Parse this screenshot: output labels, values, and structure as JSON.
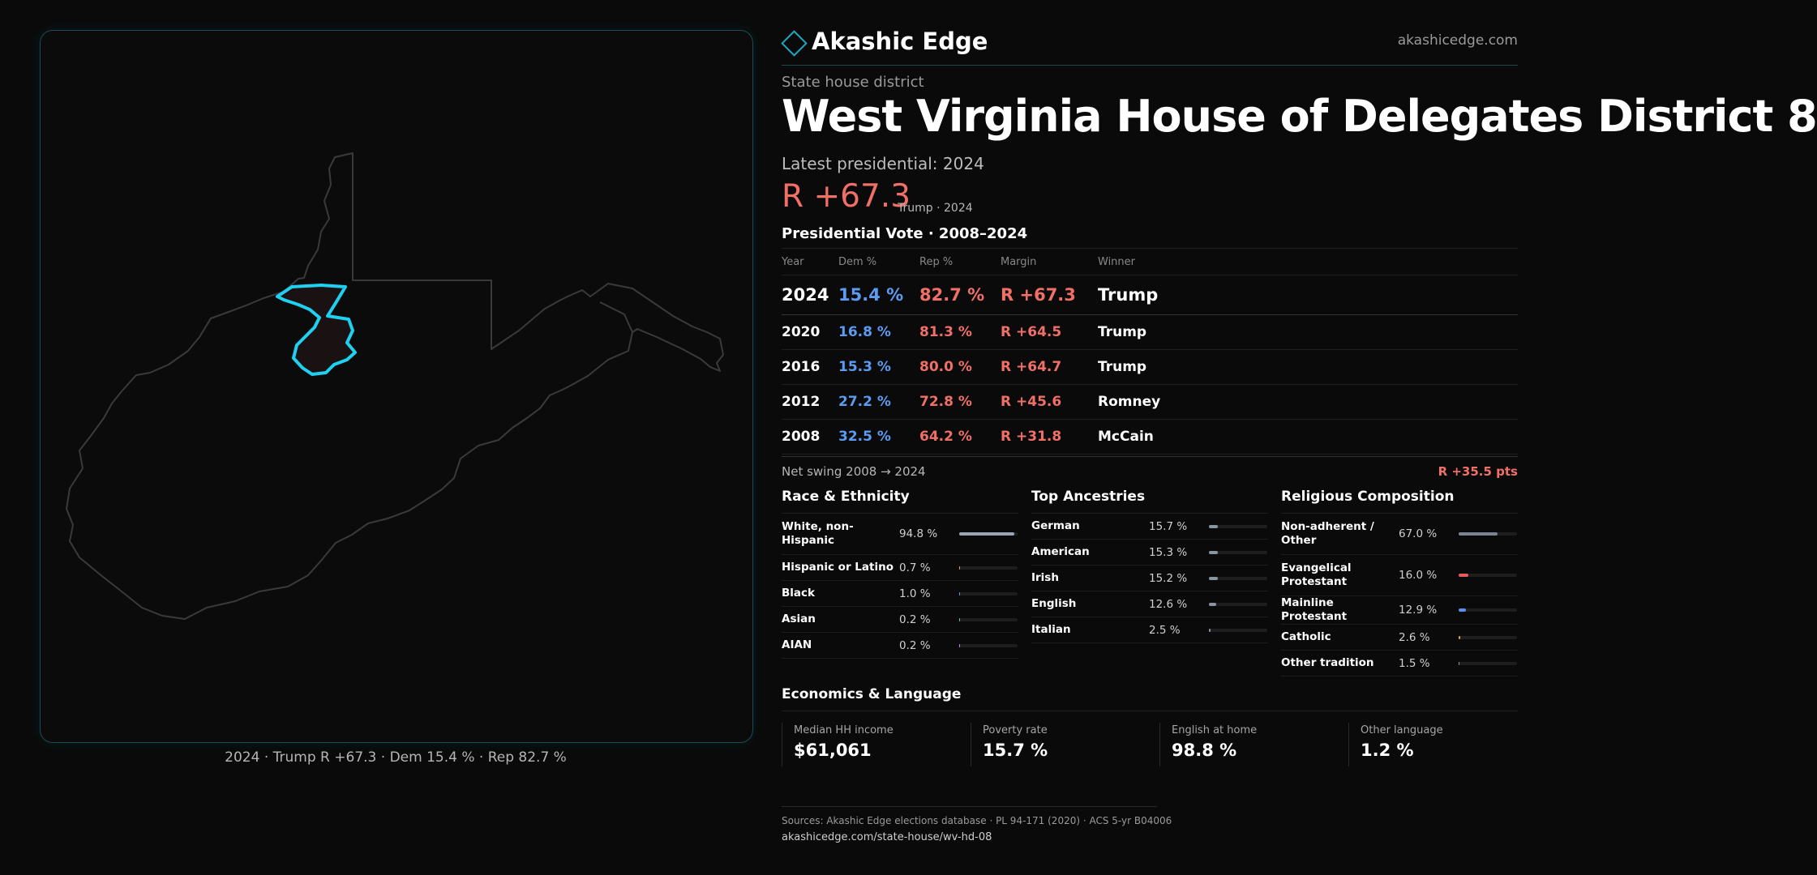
{
  "map": {
    "caption": "2024 · Trump R +67.3 · Dem 15.4 % · Rep 82.7 %",
    "state_stroke": "#3a3a3a",
    "district_stroke": "#1fd0f0",
    "district_fill": "#1a1113"
  },
  "header": {
    "brand": "Akashic Edge",
    "site": "akashicedge.com",
    "brand_icon": "diamond-icon"
  },
  "district": {
    "kind": "State house district",
    "title": "West Virginia House of Delegates District 8",
    "latest_label": "Latest presidential: 2024",
    "margin": "R +67.3",
    "margin_sub": "Trump · 2024"
  },
  "presidential": {
    "title": "Presidential Vote · 2008–2024",
    "columns": [
      "Year",
      "Dem %",
      "Rep %",
      "Margin",
      "Winner"
    ],
    "rows": [
      {
        "year": "2024",
        "dem": "15.4 %",
        "rep": "82.7 %",
        "margin": "R +67.3",
        "winner": "Trump"
      },
      {
        "year": "2020",
        "dem": "16.8 %",
        "rep": "81.3 %",
        "margin": "R +64.5",
        "winner": "Trump"
      },
      {
        "year": "2016",
        "dem": "15.3 %",
        "rep": "80.0 %",
        "margin": "R +64.7",
        "winner": "Trump"
      },
      {
        "year": "2012",
        "dem": "27.2 %",
        "rep": "72.8 %",
        "margin": "R +45.6",
        "winner": "Romney"
      },
      {
        "year": "2008",
        "dem": "32.5 %",
        "rep": "64.2 %",
        "margin": "R +31.8",
        "winner": "McCain"
      }
    ],
    "swing_label": "Net swing 2008 → 2024",
    "swing_value": "R +35.5 pts"
  },
  "race": {
    "title": "Race & Ethnicity",
    "items": [
      {
        "label": "White, non-Hispanic",
        "value": "94.8 %",
        "share": 0.948,
        "color": "#9aa6b8"
      },
      {
        "label": "Hispanic or Latino",
        "value": "0.7 %",
        "share": 0.007,
        "color": "#e0a040"
      },
      {
        "label": "Black",
        "value": "1.0 %",
        "share": 0.01,
        "color": "#6c8ef0"
      },
      {
        "label": "Asian",
        "value": "0.2 %",
        "share": 0.002,
        "color": "#6ac08a"
      },
      {
        "label": "AIAN",
        "value": "0.2 %",
        "share": 0.002,
        "color": "#b08ad0"
      }
    ]
  },
  "ancestry": {
    "title": "Top Ancestries",
    "items": [
      {
        "label": "German",
        "value": "15.7 %",
        "share": 0.157,
        "color": "#8a94a4"
      },
      {
        "label": "American",
        "value": "15.3 %",
        "share": 0.153,
        "color": "#8a94a4"
      },
      {
        "label": "Irish",
        "value": "15.2 %",
        "share": 0.152,
        "color": "#8a94a4"
      },
      {
        "label": "English",
        "value": "12.6 %",
        "share": 0.126,
        "color": "#8a94a4"
      },
      {
        "label": "Italian",
        "value": "2.5 %",
        "share": 0.025,
        "color": "#8a94a4"
      }
    ]
  },
  "religion": {
    "title": "Religious Composition",
    "items": [
      {
        "label": "Non-adherent / Other",
        "value": "67.0 %",
        "share": 0.67,
        "color": "#7a8294"
      },
      {
        "label": "Evangelical Protestant",
        "value": "16.0 %",
        "share": 0.16,
        "color": "#e85a5a"
      },
      {
        "label": "Mainline Protestant",
        "value": "12.9 %",
        "share": 0.129,
        "color": "#5b8ef0"
      },
      {
        "label": "Catholic",
        "value": "2.6 %",
        "share": 0.026,
        "color": "#e0a040"
      },
      {
        "label": "Other tradition",
        "value": "1.5 %",
        "share": 0.015,
        "color": "#8a94a4"
      }
    ]
  },
  "economics": {
    "title": "Economics & Language",
    "items": [
      {
        "label": "Median HH income",
        "value": "$61,061"
      },
      {
        "label": "Poverty rate",
        "value": "15.7 %"
      },
      {
        "label": "English at home",
        "value": "98.8 %"
      },
      {
        "label": "Other language",
        "value": "1.2 %"
      }
    ]
  },
  "footer": {
    "sources": "Sources: Akashic Edge elections database · PL 94-171 (2020) · ACS 5-yr B04006",
    "url": "akashicedge.com/state-house/wv-hd-08"
  }
}
